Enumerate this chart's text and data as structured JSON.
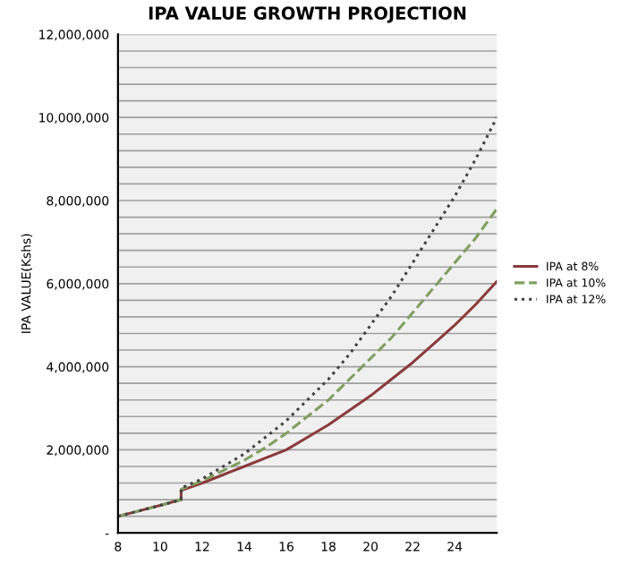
{
  "chart_data": {
    "type": "line",
    "title": "IPA VALUE GROWTH PROJECTION",
    "ylabel": "IPA VALUE(Kshs)",
    "xlim": [
      8,
      26
    ],
    "xticks": [
      8,
      10,
      12,
      14,
      16,
      18,
      20,
      22,
      24
    ],
    "ylim": [
      0,
      12000000
    ],
    "yticks": [
      {
        "value": 0,
        "label": "-"
      },
      {
        "value": 400000,
        "label": null
      },
      {
        "value": 800000,
        "label": null
      },
      {
        "value": 1200000,
        "label": null
      },
      {
        "value": 1600000,
        "label": null
      },
      {
        "value": 2000000,
        "label": "2,000,000"
      },
      {
        "value": 2400000,
        "label": null
      },
      {
        "value": 2800000,
        "label": null
      },
      {
        "value": 3200000,
        "label": null
      },
      {
        "value": 3600000,
        "label": null
      },
      {
        "value": 4000000,
        "label": "4,000,000"
      },
      {
        "value": 4400000,
        "label": null
      },
      {
        "value": 4800000,
        "label": null
      },
      {
        "value": 5200000,
        "label": null
      },
      {
        "value": 5600000,
        "label": null
      },
      {
        "value": 6000000,
        "label": "6,000,000"
      },
      {
        "value": 6400000,
        "label": null
      },
      {
        "value": 6800000,
        "label": null
      },
      {
        "value": 7200000,
        "label": null
      },
      {
        "value": 7600000,
        "label": null
      },
      {
        "value": 8000000,
        "label": "8,000,000"
      },
      {
        "value": 8400000,
        "label": null
      },
      {
        "value": 8800000,
        "label": null
      },
      {
        "value": 9200000,
        "label": null
      },
      {
        "value": 9600000,
        "label": null
      },
      {
        "value": 10000000,
        "label": "10,000,000"
      },
      {
        "value": 10400000,
        "label": null
      },
      {
        "value": 10800000,
        "label": null
      },
      {
        "value": 11200000,
        "label": null
      },
      {
        "value": 11600000,
        "label": null
      },
      {
        "value": 12000000,
        "label": "12,000,000"
      }
    ],
    "x": [
      8,
      9,
      10,
      11,
      11,
      12,
      13,
      14,
      15,
      16,
      17,
      18,
      19,
      20,
      21,
      22,
      23,
      24,
      25,
      26
    ],
    "grid": "y",
    "legend": "right",
    "series": [
      {
        "name": "IPA at 8%",
        "color": "#8b3a3a",
        "line_style": "solid",
        "values": [
          400000,
          530000,
          660000,
          800000,
          1020000,
          1200000,
          1400000,
          1600000,
          1800000,
          2000000,
          2300000,
          2600000,
          2950000,
          3300000,
          3700000,
          4100000,
          4550000,
          5000000,
          5500000,
          6050000
        ]
      },
      {
        "name": "IPA at 10%",
        "color": "#7f9f5f",
        "line_style": "dashed",
        "values": [
          400000,
          530000,
          660000,
          800000,
          1050000,
          1250000,
          1500000,
          1750000,
          2050000,
          2400000,
          2800000,
          3200000,
          3700000,
          4200000,
          4700000,
          5300000,
          5900000,
          6500000,
          7100000,
          7800000
        ]
      },
      {
        "name": "IPA at 12%",
        "color": "#404040",
        "line_style": "dotted",
        "values": [
          400000,
          530000,
          660000,
          800000,
          1080000,
          1300000,
          1600000,
          1900000,
          2300000,
          2700000,
          3200000,
          3700000,
          4300000,
          5000000,
          5700000,
          6500000,
          7300000,
          8100000,
          9000000,
          10000000
        ]
      }
    ]
  }
}
